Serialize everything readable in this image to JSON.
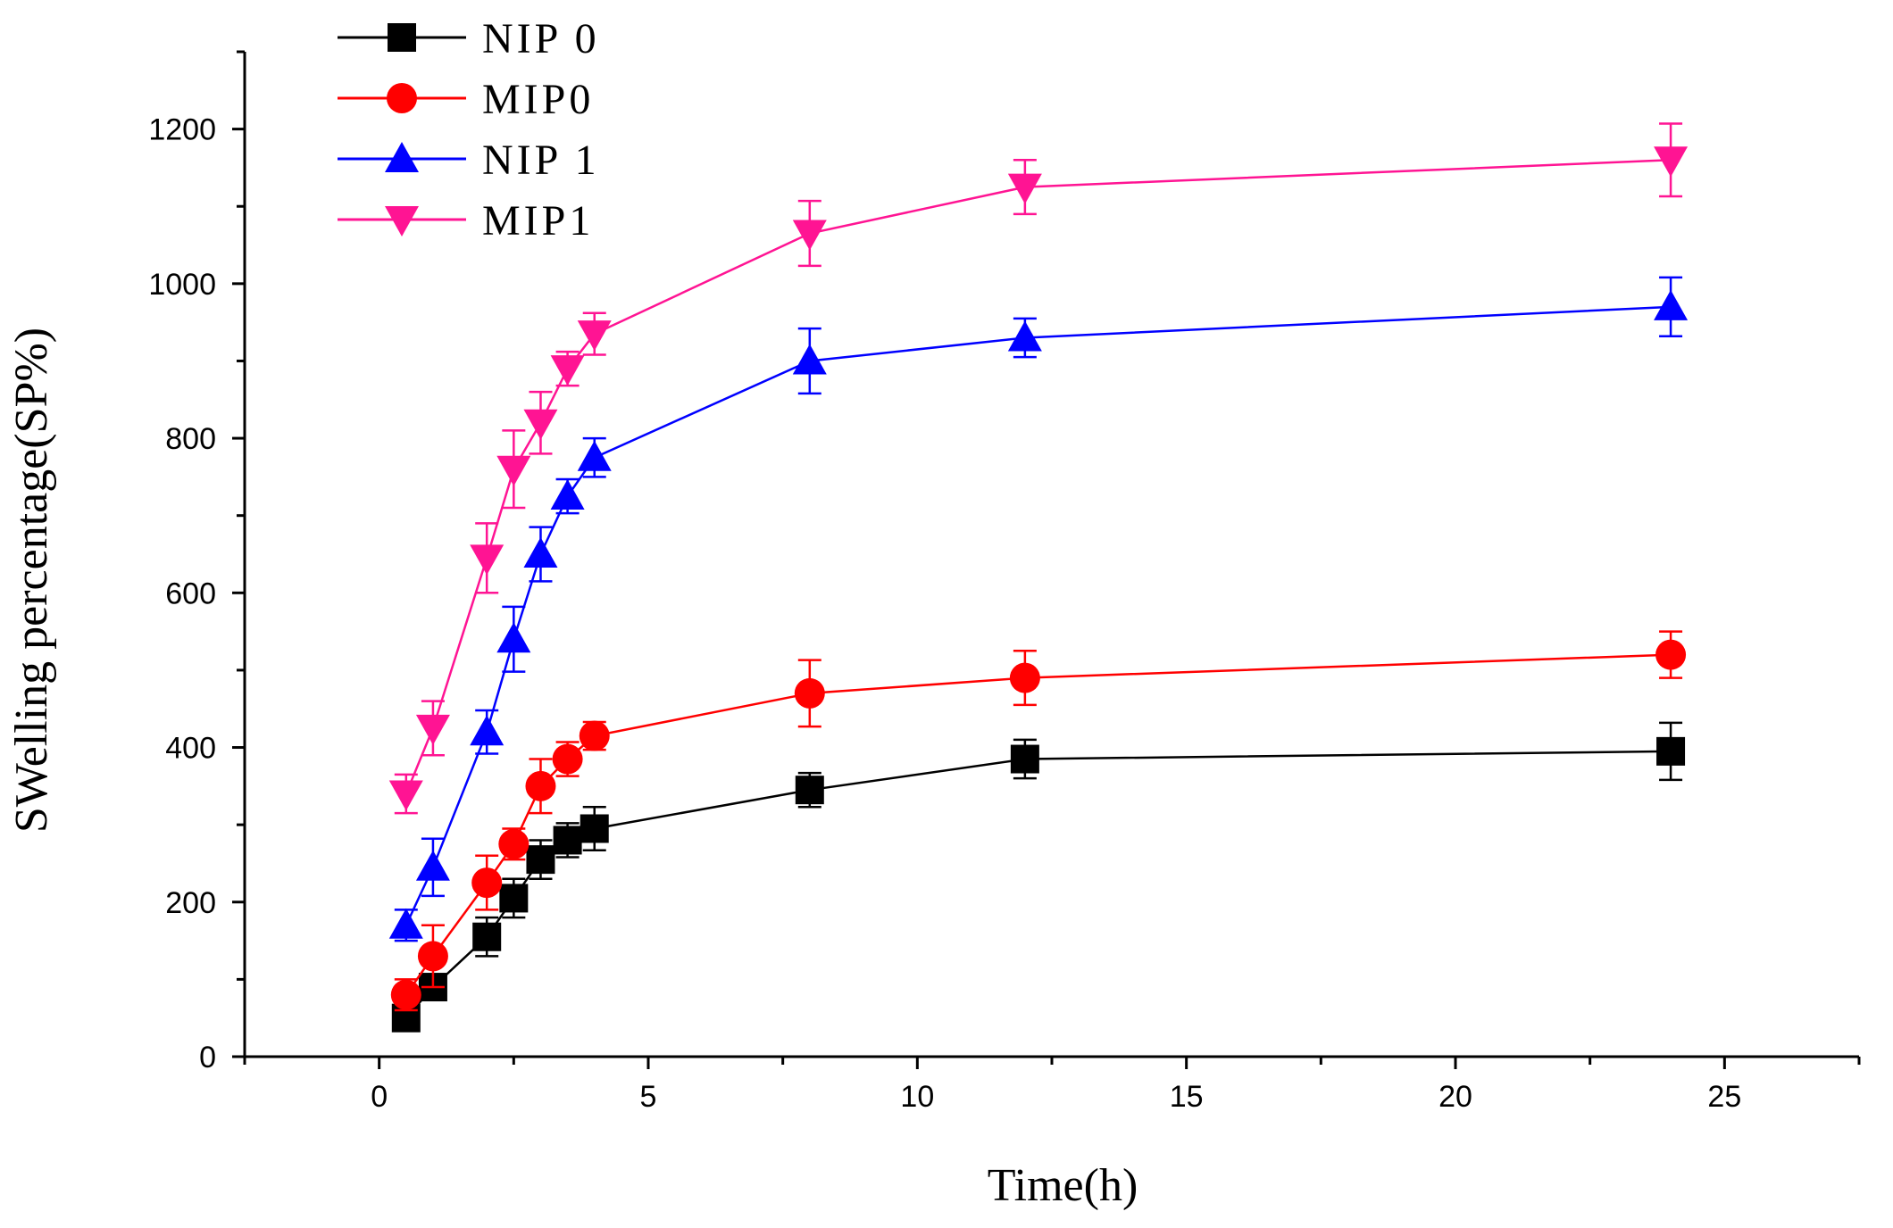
{
  "chart_data": {
    "type": "line",
    "title": "",
    "xlabel": "Time(h)",
    "ylabel": "SWelling percentage(SP%)",
    "xlim": [
      -2.5,
      27.5
    ],
    "ylim": [
      0,
      1300
    ],
    "xticks": [
      0,
      5,
      10,
      15,
      20,
      25
    ],
    "yticks": [
      0,
      200,
      400,
      600,
      800,
      1000,
      1200
    ],
    "grid": false,
    "legend_position": "top-left",
    "x": [
      0.5,
      1,
      2,
      2.5,
      3,
      3.5,
      4,
      8,
      12,
      24
    ],
    "series": [
      {
        "name": "NIP 0",
        "color": "#000000",
        "marker": "square",
        "values": [
          50,
          90,
          155,
          205,
          255,
          280,
          295,
          345,
          385,
          395
        ],
        "errors": [
          10,
          15,
          25,
          25,
          25,
          22,
          28,
          22,
          25,
          37
        ]
      },
      {
        "name": "MIP0",
        "color": "#ff0000",
        "marker": "circle",
        "values": [
          80,
          130,
          225,
          275,
          350,
          385,
          415,
          470,
          490,
          520
        ],
        "errors": [
          20,
          40,
          35,
          20,
          35,
          22,
          18,
          43,
          35,
          30
        ]
      },
      {
        "name": "NIP 1",
        "color": "#0000ff",
        "marker": "triangle-up",
        "values": [
          170,
          245,
          420,
          540,
          650,
          725,
          775,
          900,
          930,
          970
        ],
        "errors": [
          20,
          37,
          28,
          42,
          35,
          22,
          25,
          42,
          25,
          38
        ]
      },
      {
        "name": "MIP1",
        "color": "#ff1493",
        "marker": "triangle-down",
        "values": [
          340,
          425,
          645,
          760,
          820,
          890,
          935,
          1065,
          1125,
          1160
        ],
        "errors": [
          25,
          35,
          45,
          50,
          40,
          22,
          27,
          42,
          35,
          47
        ]
      }
    ]
  }
}
